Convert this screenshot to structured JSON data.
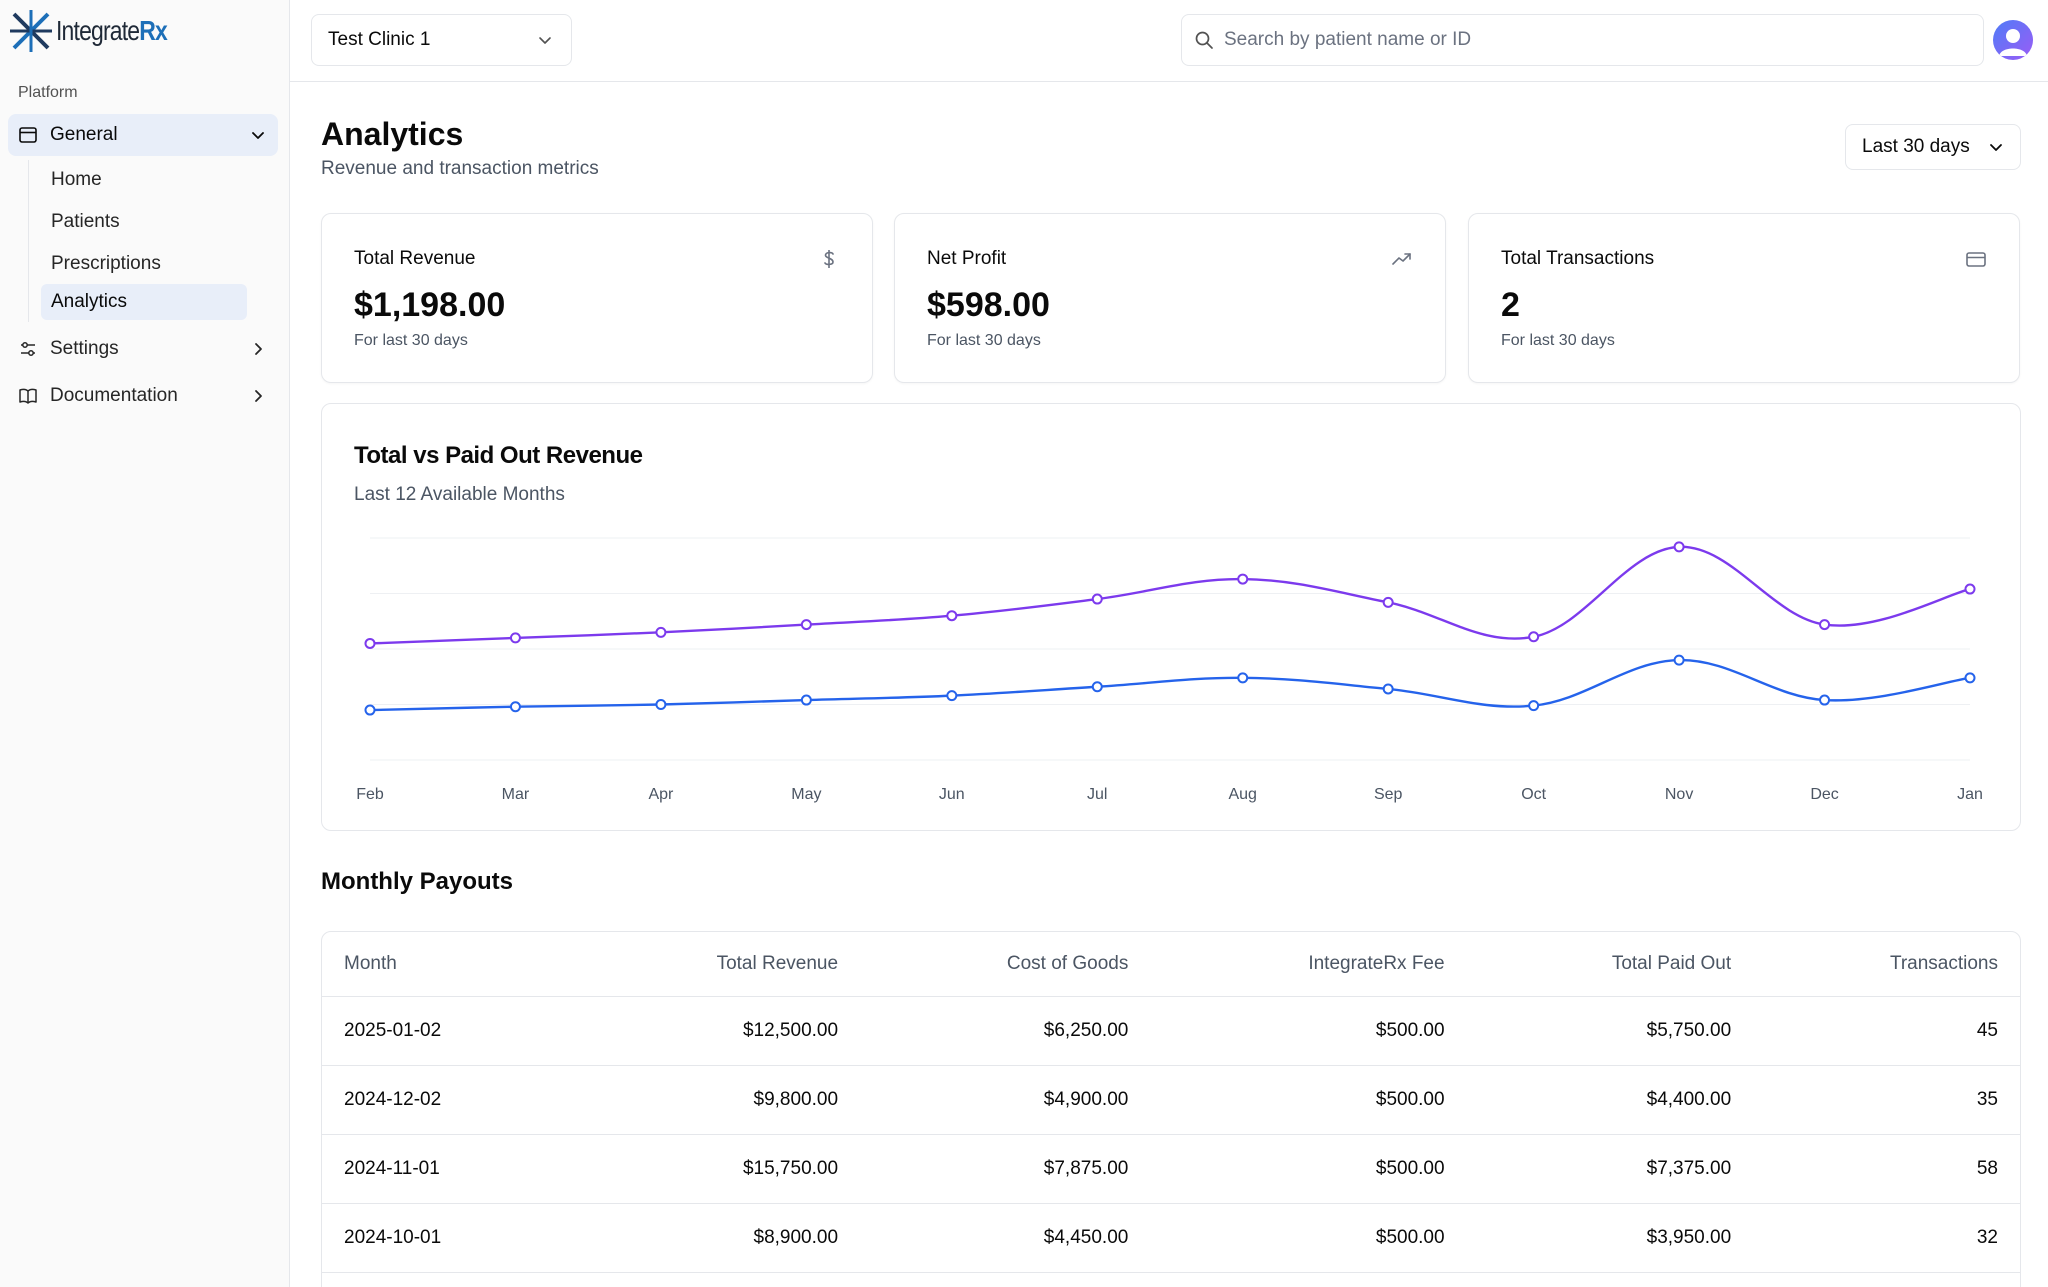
{
  "brand": {
    "name_part1": "Integrate",
    "name_part2": "Rx"
  },
  "sidebar": {
    "section_label": "Platform",
    "general_label": "General",
    "sub_items": [
      {
        "label": "Home"
      },
      {
        "label": "Patients"
      },
      {
        "label": "Prescriptions"
      },
      {
        "label": "Analytics"
      }
    ],
    "settings_label": "Settings",
    "documentation_label": "Documentation"
  },
  "header": {
    "clinic": "Test Clinic 1",
    "search_placeholder": "Search by patient name or ID"
  },
  "page": {
    "title": "Analytics",
    "subtitle": "Revenue and transaction metrics",
    "range": "Last 30 days"
  },
  "cards": [
    {
      "title": "Total Revenue",
      "value": "$1,198.00",
      "sub": "For last 30 days",
      "icon": "dollar-icon"
    },
    {
      "title": "Net Profit",
      "value": "$598.00",
      "sub": "For last 30 days",
      "icon": "trending-up-icon"
    },
    {
      "title": "Total Transactions",
      "value": "2",
      "sub": "For last 30 days",
      "icon": "credit-card-icon"
    }
  ],
  "chart": {
    "title": "Total vs Paid Out Revenue",
    "subtitle": "Last 12 Available Months"
  },
  "chart_data": {
    "type": "line",
    "categories": [
      "Feb",
      "Mar",
      "Apr",
      "May",
      "Jun",
      "Jul",
      "Aug",
      "Sep",
      "Oct",
      "Nov",
      "Dec",
      "Jan"
    ],
    "series": [
      {
        "color": "#7c3aed",
        "values": [
          10500,
          11000,
          11500,
          12200,
          13000,
          14500,
          16300,
          14200,
          11100,
          19200,
          12200,
          15400
        ]
      },
      {
        "color": "#2563eb",
        "values": [
          4500,
          4800,
          5000,
          5400,
          5800,
          6600,
          7400,
          6400,
          4900,
          9000,
          5400,
          7400
        ]
      }
    ],
    "ylim": [
      0,
      20000
    ],
    "grid": true
  },
  "payouts": {
    "title": "Monthly Payouts",
    "columns": [
      "Month",
      "Total Revenue",
      "Cost of Goods",
      "IntegrateRx Fee",
      "Total Paid Out",
      "Transactions"
    ],
    "rows": [
      [
        "2025-01-02",
        "$12,500.00",
        "$6,250.00",
        "$500.00",
        "$5,750.00",
        "45"
      ],
      [
        "2024-12-02",
        "$9,800.00",
        "$4,900.00",
        "$500.00",
        "$4,400.00",
        "35"
      ],
      [
        "2024-11-01",
        "$15,750.00",
        "$7,875.00",
        "$500.00",
        "$7,375.00",
        "58"
      ],
      [
        "2024-10-01",
        "$8,900.00",
        "$4,450.00",
        "$500.00",
        "$3,950.00",
        "32"
      ]
    ]
  }
}
